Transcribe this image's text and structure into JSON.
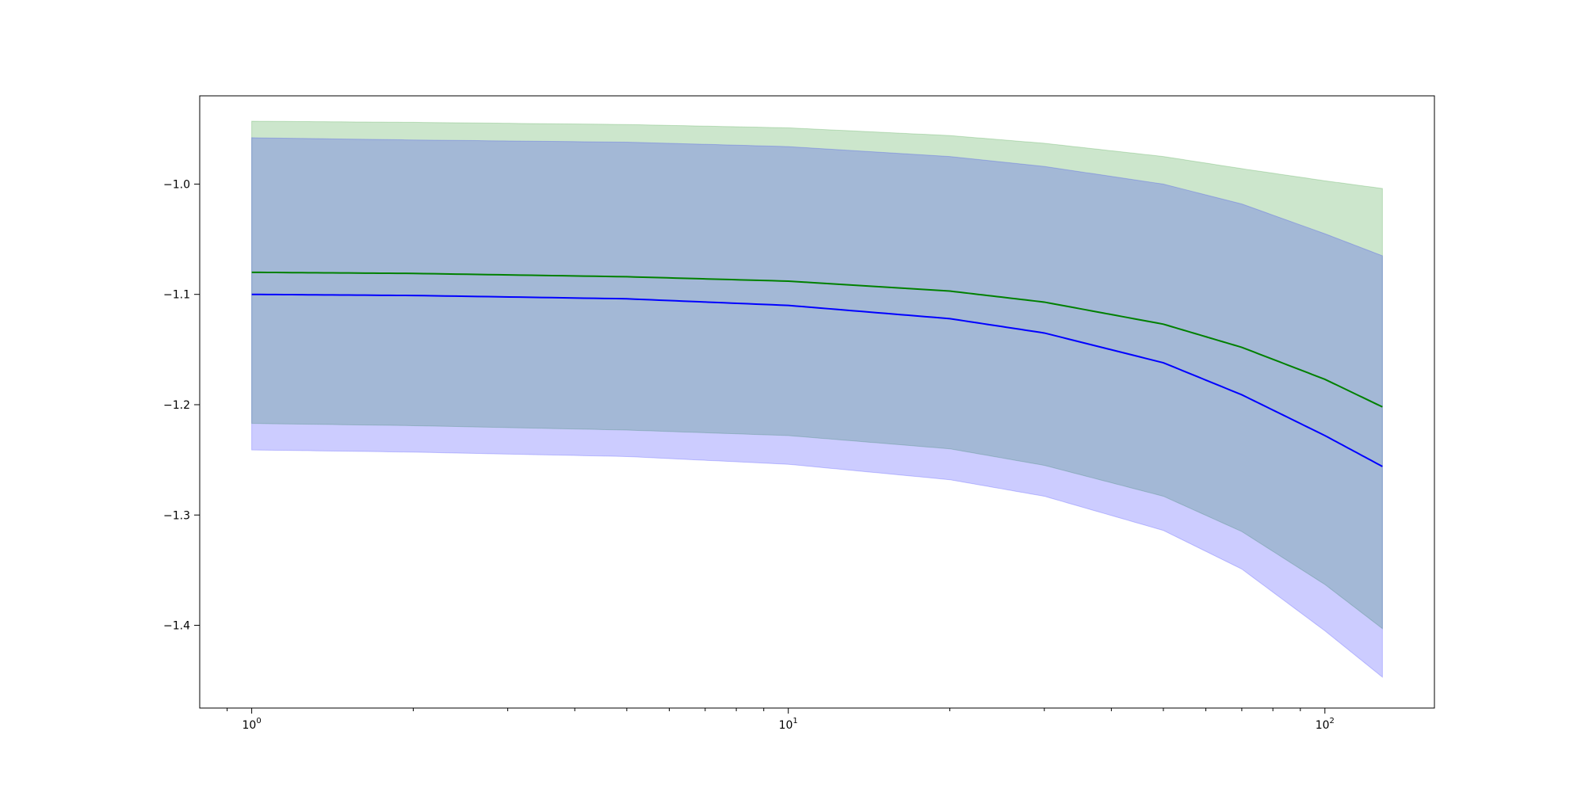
{
  "chart_data": {
    "type": "area",
    "title": "",
    "xlabel": "",
    "ylabel": "",
    "xscale": "log",
    "xlim": [
      0.8,
      160
    ],
    "ylim": [
      -1.475,
      -0.92
    ],
    "grid": false,
    "legend": "none",
    "x_ticks": [
      {
        "base": "10",
        "exp": "0",
        "value": 1
      },
      {
        "base": "10",
        "exp": "1",
        "value": 10
      },
      {
        "base": "10",
        "exp": "2",
        "value": 100
      }
    ],
    "y_ticks": [
      {
        "label": "−1.0",
        "value": -1.0
      },
      {
        "label": "−1.1",
        "value": -1.1
      },
      {
        "label": "−1.2",
        "value": -1.2
      },
      {
        "label": "−1.3",
        "value": -1.3
      },
      {
        "label": "−1.4",
        "value": -1.4
      }
    ],
    "x": [
      1,
      2,
      5,
      10,
      20,
      30,
      50,
      70,
      100,
      128
    ],
    "series": [
      {
        "color": "#008000",
        "values": [
          -1.08,
          -1.081,
          -1.084,
          -1.088,
          -1.097,
          -1.107,
          -1.127,
          -1.148,
          -1.177,
          -1.202
        ],
        "band_lower": [
          -1.217,
          -1.219,
          -1.223,
          -1.228,
          -1.24,
          -1.255,
          -1.283,
          -1.315,
          -1.363,
          -1.403
        ],
        "band_upper": [
          -0.943,
          -0.944,
          -0.946,
          -0.949,
          -0.956,
          -0.963,
          -0.975,
          -0.986,
          -0.997,
          -1.004
        ],
        "band_color": "#008000",
        "band_opacity": 0.2
      },
      {
        "color": "#0000ff",
        "values": [
          -1.1,
          -1.101,
          -1.104,
          -1.11,
          -1.122,
          -1.135,
          -1.162,
          -1.191,
          -1.228,
          -1.256
        ],
        "band_lower": [
          -1.241,
          -1.243,
          -1.247,
          -1.254,
          -1.268,
          -1.283,
          -1.314,
          -1.349,
          -1.405,
          -1.447
        ],
        "band_upper": [
          -0.958,
          -0.96,
          -0.962,
          -0.966,
          -0.975,
          -0.984,
          -1.0,
          -1.018,
          -1.045,
          -1.065
        ],
        "band_color": "#0000ff",
        "band_opacity": 0.2
      }
    ]
  }
}
